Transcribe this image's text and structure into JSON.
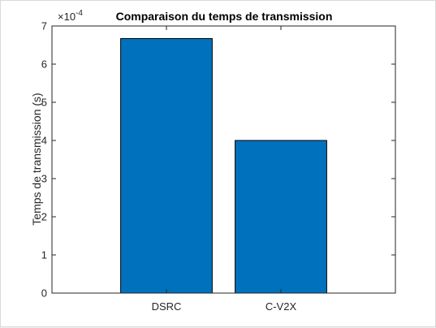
{
  "chart_data": {
    "type": "bar",
    "title": "Comparaison du temps de transmission",
    "xlabel": "",
    "ylabel": "Temps de transmission (s)",
    "categories": [
      "DSRC",
      "C-V2X"
    ],
    "values": [
      0.000667,
      0.0004
    ],
    "ylim": [
      0,
      0.0007
    ],
    "yticks": [
      0,
      1,
      2,
      3,
      4,
      5,
      6,
      7
    ],
    "ytick_labels": [
      "0",
      "1",
      "2",
      "3",
      "4",
      "5",
      "6",
      "7"
    ],
    "exponent_label": {
      "base": "×10",
      "exponent": "-4"
    },
    "bar_color": "#0072BD",
    "edge_color": "#000000",
    "grid": false
  }
}
